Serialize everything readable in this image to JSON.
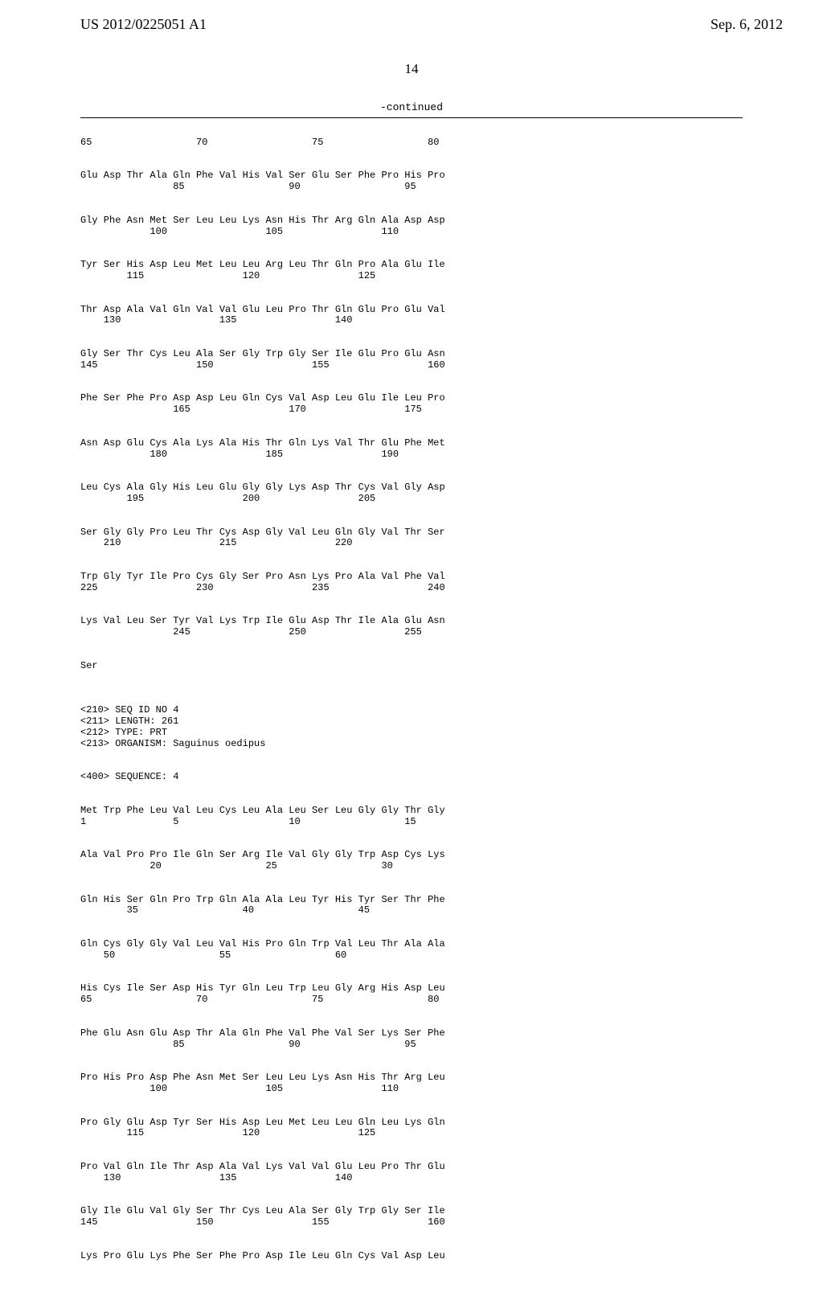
{
  "header": {
    "left": "US 2012/0225051 A1",
    "right": "Sep. 6, 2012"
  },
  "pageNumber": "14",
  "continuedLabel": "-continued",
  "sequences": {
    "block1": {
      "line1": "65                  70                  75                  80",
      "row1a": "Glu Asp Thr Ala Gln Phe Val His Val Ser Glu Ser Phe Pro His Pro",
      "row1b": "                85                  90                  95",
      "row2a": "Gly Phe Asn Met Ser Leu Leu Lys Asn His Thr Arg Gln Ala Asp Asp",
      "row2b": "            100                 105                 110",
      "row3a": "Tyr Ser His Asp Leu Met Leu Leu Arg Leu Thr Gln Pro Ala Glu Ile",
      "row3b": "        115                 120                 125",
      "row4a": "Thr Asp Ala Val Gln Val Val Glu Leu Pro Thr Gln Glu Pro Glu Val",
      "row4b": "    130                 135                 140",
      "row5a": "Gly Ser Thr Cys Leu Ala Ser Gly Trp Gly Ser Ile Glu Pro Glu Asn",
      "row5b": "145                 150                 155                 160",
      "row6a": "Phe Ser Phe Pro Asp Asp Leu Gln Cys Val Asp Leu Glu Ile Leu Pro",
      "row6b": "                165                 170                 175",
      "row7a": "Asn Asp Glu Cys Ala Lys Ala His Thr Gln Lys Val Thr Glu Phe Met",
      "row7b": "            180                 185                 190",
      "row8a": "Leu Cys Ala Gly His Leu Glu Gly Gly Lys Asp Thr Cys Val Gly Asp",
      "row8b": "        195                 200                 205",
      "row9a": "Ser Gly Gly Pro Leu Thr Cys Asp Gly Val Leu Gln Gly Val Thr Ser",
      "row9b": "    210                 215                 220",
      "row10a": "Trp Gly Tyr Ile Pro Cys Gly Ser Pro Asn Lys Pro Ala Val Phe Val",
      "row10b": "225                 230                 235                 240",
      "row11a": "Lys Val Leu Ser Tyr Val Lys Trp Ile Glu Asp Thr Ile Ala Glu Asn",
      "row11b": "                245                 250                 255",
      "row12": "Ser"
    },
    "meta": {
      "line1": "<210> SEQ ID NO 4",
      "line2": "<211> LENGTH: 261",
      "line3": "<212> TYPE: PRT",
      "line4": "<213> ORGANISM: Saguinus oedipus",
      "line5": "<400> SEQUENCE: 4"
    },
    "block2": {
      "row1a": "Met Trp Phe Leu Val Leu Cys Leu Ala Leu Ser Leu Gly Gly Thr Gly",
      "row1b": "1               5                   10                  15",
      "row2a": "Ala Val Pro Pro Ile Gln Ser Arg Ile Val Gly Gly Trp Asp Cys Lys",
      "row2b": "            20                  25                  30",
      "row3a": "Gln His Ser Gln Pro Trp Gln Ala Ala Leu Tyr His Tyr Ser Thr Phe",
      "row3b": "        35                  40                  45",
      "row4a": "Gln Cys Gly Gly Val Leu Val His Pro Gln Trp Val Leu Thr Ala Ala",
      "row4b": "    50                  55                  60",
      "row5a": "His Cys Ile Ser Asp His Tyr Gln Leu Trp Leu Gly Arg His Asp Leu",
      "row5b": "65                  70                  75                  80",
      "row6a": "Phe Glu Asn Glu Asp Thr Ala Gln Phe Val Phe Val Ser Lys Ser Phe",
      "row6b": "                85                  90                  95",
      "row7a": "Pro His Pro Asp Phe Asn Met Ser Leu Leu Lys Asn His Thr Arg Leu",
      "row7b": "            100                 105                 110",
      "row8a": "Pro Gly Glu Asp Tyr Ser His Asp Leu Met Leu Leu Gln Leu Lys Gln",
      "row8b": "        115                 120                 125",
      "row9a": "Pro Val Gln Ile Thr Asp Ala Val Lys Val Val Glu Leu Pro Thr Glu",
      "row9b": "    130                 135                 140",
      "row10a": "Gly Ile Glu Val Gly Ser Thr Cys Leu Ala Ser Gly Trp Gly Ser Ile",
      "row10b": "145                 150                 155                 160",
      "row11": "Lys Pro Glu Lys Phe Ser Phe Pro Asp Ile Leu Gln Cys Val Asp Leu"
    }
  }
}
